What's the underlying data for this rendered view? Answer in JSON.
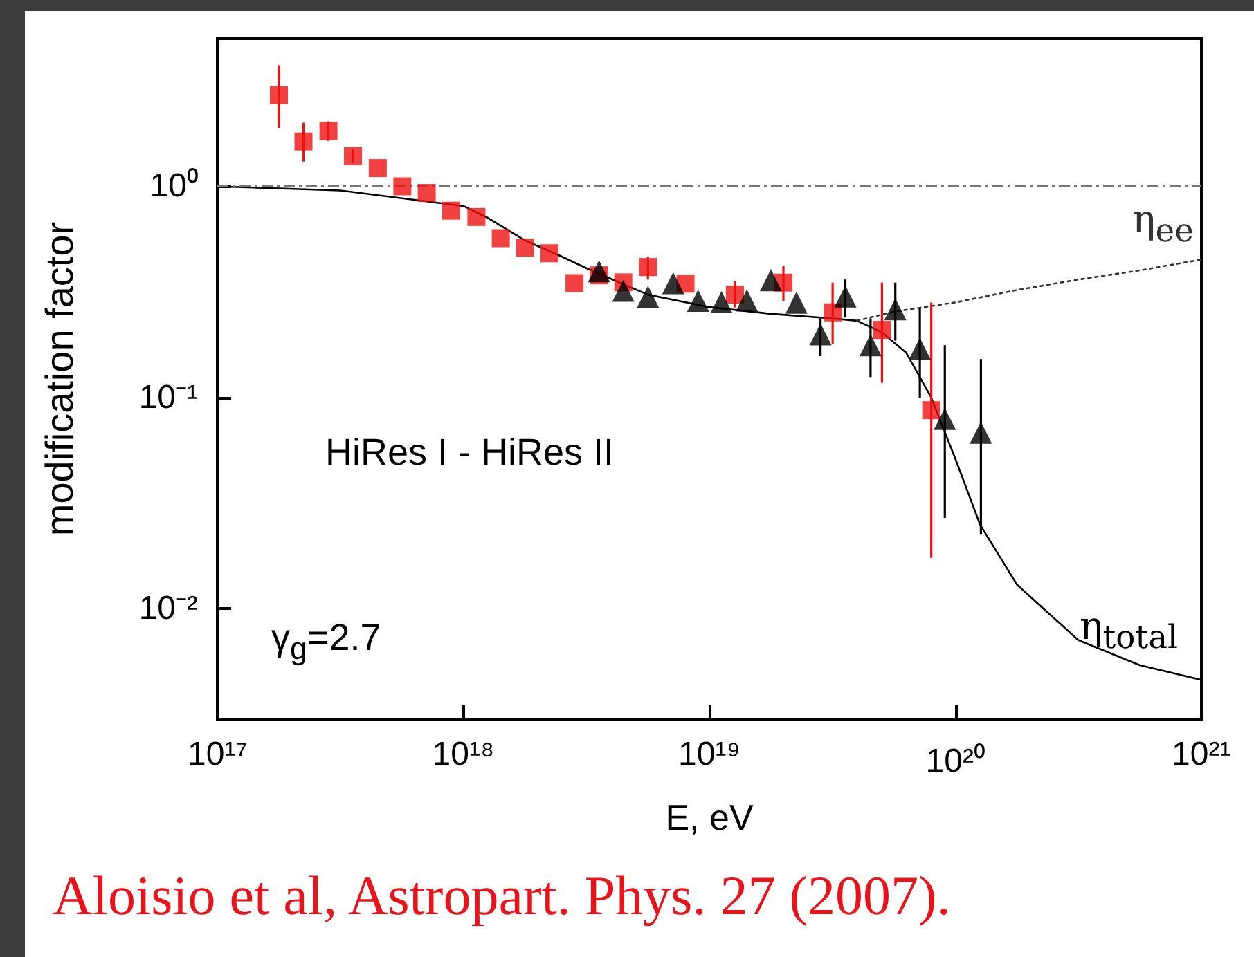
{
  "chart_data": {
    "type": "scatter",
    "xlabel": "E, eV",
    "ylabel": "modification factor",
    "log": "xy",
    "grid": false,
    "legend": false,
    "xlim": [
      1e+17,
      1e+21
    ],
    "ylim": [
      0.003,
      5
    ],
    "xticks": [
      {
        "value": 1e+17,
        "label": "10¹⁷"
      },
      {
        "value": 1e+18,
        "label": "10¹⁸"
      },
      {
        "value": 1e+19,
        "label": "10¹⁹"
      },
      {
        "value": 1e+20,
        "label": "10²⁰"
      },
      {
        "value": 1e+21,
        "label": "10²¹"
      }
    ],
    "yticks": [
      {
        "value": 0.01,
        "label": "10⁻²"
      },
      {
        "value": 0.1,
        "label": "10⁻¹"
      },
      {
        "value": 1,
        "label": "10⁰"
      }
    ],
    "series": [
      {
        "color": "#ee1111",
        "marker": "square",
        "x": [
          1.78e+17,
          2.24e+17,
          2.83e+17,
          3.56e+17,
          4.49e+17,
          5.65e+17,
          7.1e+17,
          8.92e+17,
          1.13e+18,
          1.42e+18,
          1.78e+18,
          2.24e+18,
          2.83e+18,
          3.56e+18,
          4.47e+18,
          5.63e+18,
          8e+18,
          1.27e+19,
          2e+19,
          3.17e+19,
          5.03e+19,
          7.98e+19
        ],
        "values": [
          2.7,
          1.63,
          1.83,
          1.39,
          1.22,
          1.0,
          0.93,
          0.767,
          0.716,
          0.568,
          0.512,
          0.482,
          0.348,
          0.379,
          0.351,
          0.415,
          0.346,
          0.307,
          0.35,
          0.253,
          0.209,
          0.0871
        ],
        "errors": [
          [
            1.89,
            3.74
          ],
          [
            1.31,
            2.0
          ],
          [
            1.64,
            2.03
          ],
          [
            1.29,
            1.5
          ],
          null,
          null,
          null,
          null,
          null,
          null,
          null,
          null,
          null,
          null,
          null,
          [
            0.362,
            0.465
          ],
          null,
          [
            0.267,
            0.357
          ],
          [
            0.287,
            0.421
          ],
          [
            0.18,
            0.35
          ],
          [
            0.1176,
            0.35
          ],
          [
            0.0174,
            0.282
          ]
        ]
      },
      {
        "color": "#000000",
        "marker": "triangle",
        "x": [
          3.56e+18,
          4.47e+18,
          5.63e+18,
          7.13e+18,
          9e+18,
          1.12e+19,
          1.42e+19,
          1.78e+19,
          2.26e+19,
          2.83e+19,
          3.57e+19,
          4.52e+19,
          5.7e+19,
          7.17e+19,
          9.06e+19,
          1.27e+20
        ],
        "values": [
          0.396,
          0.32,
          0.3,
          0.348,
          0.287,
          0.283,
          0.288,
          0.359,
          0.281,
          0.199,
          0.301,
          0.177,
          0.262,
          0.17,
          0.0793,
          0.0682
        ],
        "errors": [
          null,
          null,
          null,
          null,
          null,
          null,
          null,
          null,
          null,
          [
            0.157,
            0.237
          ],
          [
            0.239,
            0.362
          ],
          [
            0.125,
            0.237
          ],
          [
            0.186,
            0.35
          ],
          [
            0.1,
            0.264
          ],
          [
            0.0269,
            0.177
          ],
          [
            0.0226,
            0.152
          ]
        ]
      },
      {
        "type": "line",
        "name": "η$_{total}$",
        "color": "#000000",
        "marker": "none",
        "line_style": "solid",
        "x": [
          1e+17,
          3.16e+17,
          1e+18,
          1.26e+18,
          1.78e+18,
          2.51e+18,
          3.16e+18,
          5.62e+18,
          1e+19,
          1.78e+19,
          3.16e+19,
          3.98e+19,
          5.01e+19,
          6.31e+19,
          7.94e+19,
          1e+20,
          1.26e+20,
          1.78e+20,
          3.16e+20,
          5.62e+20,
          1e+21
        ],
        "values": [
          1.0,
          0.956,
          0.807,
          0.708,
          0.555,
          0.465,
          0.41,
          0.307,
          0.268,
          0.249,
          0.237,
          0.231,
          0.204,
          0.163,
          0.101,
          0.0513,
          0.025,
          0.013,
          0.0071,
          0.0054,
          0.0046
        ]
      },
      {
        "type": "line",
        "name": "η$_{ee}$",
        "color": "#333333",
        "marker": "none",
        "line_style": "dotted",
        "x": [
          3.98e+19,
          5.62e+19,
          1e+20,
          1.78e+20,
          3.16e+20,
          5.62e+20,
          1e+21
        ],
        "values": [
          0.231,
          0.255,
          0.282,
          0.323,
          0.362,
          0.4,
          0.45
        ]
      }
    ],
    "ref_lines": [
      {
        "axis": "y",
        "value": 1,
        "color": "#777777",
        "line_style": "dashed"
      }
    ],
    "annotations": [
      "HiRes I - HiRes II",
      "γ$_{g}$=2.7",
      "Aloisio et al,  Astropart. Phys. 27 (2007)."
    ]
  }
}
